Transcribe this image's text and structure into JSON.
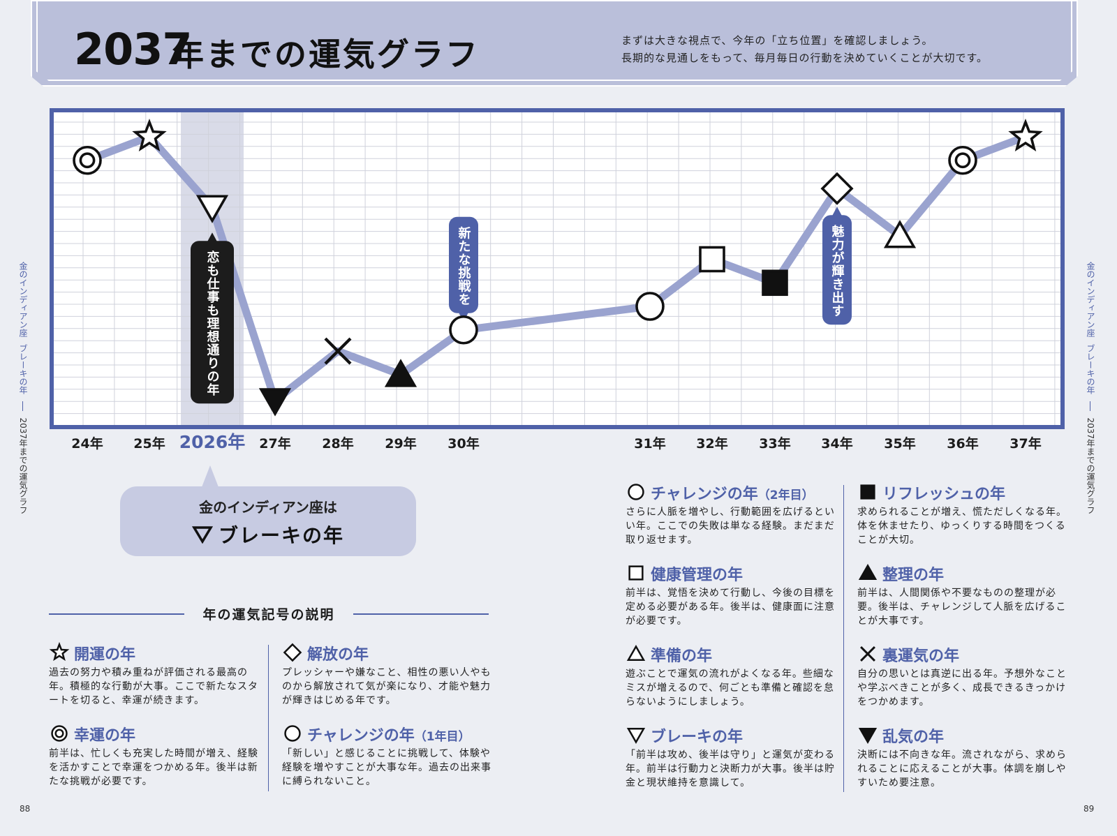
{
  "header": {
    "title_year": "2037",
    "title_rest": "年までの運気グラフ",
    "intro_lines": [
      "まずは大きな視点で、今年の「立ち位置」を確認しましょう。",
      "長期的な見通しをもって、毎月毎日の行動を決めていくことが大切です。"
    ]
  },
  "side_left": {
    "a": "金のインディアン座",
    "b": "ブレーキの年",
    "c": "2037年までの運気グラフ"
  },
  "side_right": {
    "a": "金のインディアン座",
    "b": "ブレーキの年",
    "c": "2037年までの運気グラフ"
  },
  "page_numbers": {
    "left": "88",
    "right": "89"
  },
  "colors": {
    "accent": "#4f61a8",
    "line": "#9aa3cf",
    "highlight": "#d9dbe8",
    "header": "#babfda"
  },
  "chart_data": {
    "type": "line",
    "categories": [
      "24年",
      "25年",
      "2026年",
      "27年",
      "28年",
      "29年",
      "30年",
      "31年",
      "32年",
      "33年",
      "34年",
      "35年",
      "36年",
      "37年"
    ],
    "values": [
      11.2,
      12.2,
      9.2,
      1.0,
      3.1,
      2.1,
      4.0,
      5.0,
      7.0,
      6.0,
      10.0,
      8.0,
      11.2,
      12.2
    ],
    "symbols": [
      "double-circle",
      "star",
      "triangle-down",
      "triangle-down-filled",
      "cross",
      "triangle-filled",
      "circle",
      "circle",
      "square",
      "square-filled",
      "diamond",
      "triangle",
      "double-circle",
      "star"
    ],
    "highlight_category": "2026年",
    "ylim": [
      0,
      13
    ],
    "grid": true,
    "annotations": [
      {
        "category": "2026年",
        "text": "恋も仕事も理想通りの年",
        "style": "dark"
      },
      {
        "category": "30年",
        "text": "新たな挑戦を",
        "style": "blue"
      },
      {
        "category": "34年",
        "text": "魅力が輝き出す",
        "style": "blue"
      }
    ]
  },
  "callout": {
    "line1": "金のインディアン座は",
    "line2": "ブレーキの年"
  },
  "legend_heading": "年の運気記号の説明",
  "legend": [
    {
      "icon": "star",
      "title": "開運の年",
      "note": "",
      "desc": "過去の努力や積み重ねが評価される最高の年。積極的な行動が大事。ここで新たなスタートを切ると、幸運が続きます。"
    },
    {
      "icon": "double-circle",
      "title": "幸運の年",
      "note": "",
      "desc": "前半は、忙しくも充実した時間が増え、経験を活かすことで幸運をつかめる年。後半は新たな挑戦が必要です。"
    },
    {
      "icon": "diamond",
      "title": "解放の年",
      "note": "",
      "desc": "プレッシャーや嫌なこと、相性の悪い人やものから解放されて気が楽になり、才能や魅力が輝きはじめる年です。"
    },
    {
      "icon": "circle",
      "title": "チャレンジの年",
      "note": "（1年目）",
      "desc": "「新しい」と感じることに挑戦して、体験や経験を増やすことが大事な年。過去の出来事に縛られないこと。"
    },
    {
      "icon": "circle",
      "title": "チャレンジの年",
      "note": "（2年目）",
      "desc": "さらに人脈を増やし、行動範囲を広げるといい年。ここでの失敗は単なる経験。まだまだ取り返せます。"
    },
    {
      "icon": "square",
      "title": "健康管理の年",
      "note": "",
      "desc": "前半は、覚悟を決めて行動し、今後の目標を定める必要がある年。後半は、健康面に注意が必要です。"
    },
    {
      "icon": "triangle",
      "title": "準備の年",
      "note": "",
      "desc": "遊ぶことで運気の流れがよくなる年。些細なミスが増えるので、何ごとも準備と確認を怠らないようにしましょう。"
    },
    {
      "icon": "triangle-down",
      "title": "ブレーキの年",
      "note": "",
      "desc": "「前半は攻め、後半は守り」と運気が変わる年。前半は行動力と決断力が大事。後半は貯金と現状維持を意識して。"
    },
    {
      "icon": "square-filled",
      "title": "リフレッシュの年",
      "note": "",
      "desc": "求められることが増え、慌ただしくなる年。体を休ませたり、ゆっくりする時間をつくることが大切。"
    },
    {
      "icon": "triangle-filled",
      "title": "整理の年",
      "note": "",
      "desc": "前半は、人間関係や不要なものの整理が必要。後半は、チャレンジして人脈を広げることが大事です。"
    },
    {
      "icon": "cross",
      "title": "裏運気の年",
      "note": "",
      "desc": "自分の思いとは真逆に出る年。予想外なことや学ぶべきことが多く、成長できるきっかけをつかめます。"
    },
    {
      "icon": "triangle-down-filled",
      "title": "乱気の年",
      "note": "",
      "desc": "決断には不向きな年。流されながら、求められることに応えることが大事。体調を崩しやすいため要注意。"
    }
  ]
}
